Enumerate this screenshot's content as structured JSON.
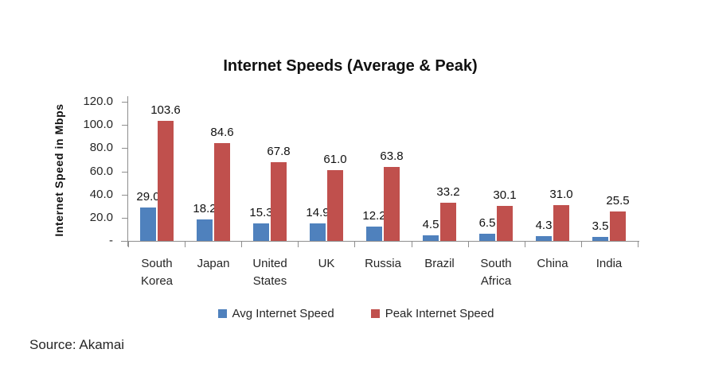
{
  "figure": {
    "source": "Source: Akamai"
  },
  "chart_data": {
    "type": "bar",
    "title": "Internet Speeds (Average & Peak)",
    "ylabel": "Internet Speed in Mbps",
    "xlabel": "",
    "categories": [
      "South Korea",
      "Japan",
      "United States",
      "UK",
      "Russia",
      "Brazil",
      "South Africa",
      "China",
      "India"
    ],
    "series": [
      {
        "name": "Avg Internet Speed",
        "color": "#4f81bd",
        "values": [
          29.0,
          18.2,
          15.3,
          14.9,
          12.2,
          4.5,
          6.5,
          4.3,
          3.5
        ]
      },
      {
        "name": "Peak Internet Speed",
        "color": "#c0504d",
        "values": [
          103.6,
          84.6,
          67.8,
          61.0,
          63.8,
          33.2,
          30.1,
          31.0,
          25.5
        ]
      }
    ],
    "ylim": [
      0,
      120
    ],
    "ytick_step": 20,
    "ytick_labels": [
      "-",
      "20.0",
      "40.0",
      "60.0",
      "80.0",
      "100.0",
      "120.0"
    ],
    "grid": false,
    "data_labels": true,
    "legend_position": "bottom"
  }
}
